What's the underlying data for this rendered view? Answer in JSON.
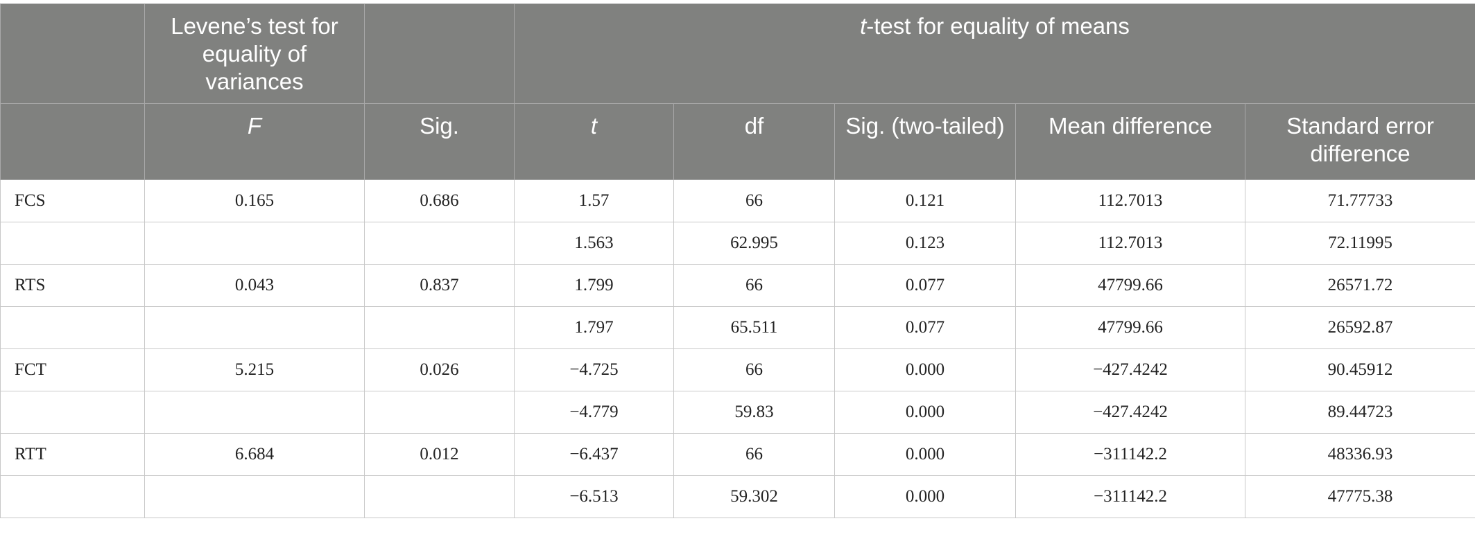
{
  "header": {
    "row1": {
      "levene": "Levene’s test for equality of variances",
      "ttest": {
        "em": "t",
        "text": "-test for equality of means"
      }
    },
    "row2": [
      "F",
      "Sig.",
      "t",
      "df",
      "Sig. (two-tailed)",
      "Mean difference",
      "Standard error difference"
    ]
  },
  "table": {
    "rows": [
      [
        "FCS",
        "0.165",
        "0.686",
        "1.57",
        "66",
        "0.121",
        "112.7013",
        "71.77733"
      ],
      [
        null,
        null,
        null,
        "1.563",
        "62.995",
        "0.123",
        "112.7013",
        "72.11995"
      ],
      [
        "RTS",
        "0.043",
        "0.837",
        "1.799",
        "66",
        "0.077",
        "47799.66",
        "26571.72"
      ],
      [
        null,
        null,
        null,
        "1.797",
        "65.511",
        "0.077",
        "47799.66",
        "26592.87"
      ],
      [
        "FCT",
        "5.215",
        "0.026",
        "−4.725",
        "66",
        "0.000",
        "−427.4242",
        "90.45912"
      ],
      [
        null,
        null,
        null,
        "−4.779",
        "59.83",
        "0.000",
        "−427.4242",
        "89.44723"
      ],
      [
        "RTT",
        "6.684",
        "0.012",
        "−6.437",
        "66",
        "0.000",
        "−311142.2",
        "48336.93"
      ],
      [
        null,
        null,
        null,
        "−6.513",
        "59.302",
        "0.000",
        "−311142.2",
        "47775.38"
      ]
    ]
  }
}
